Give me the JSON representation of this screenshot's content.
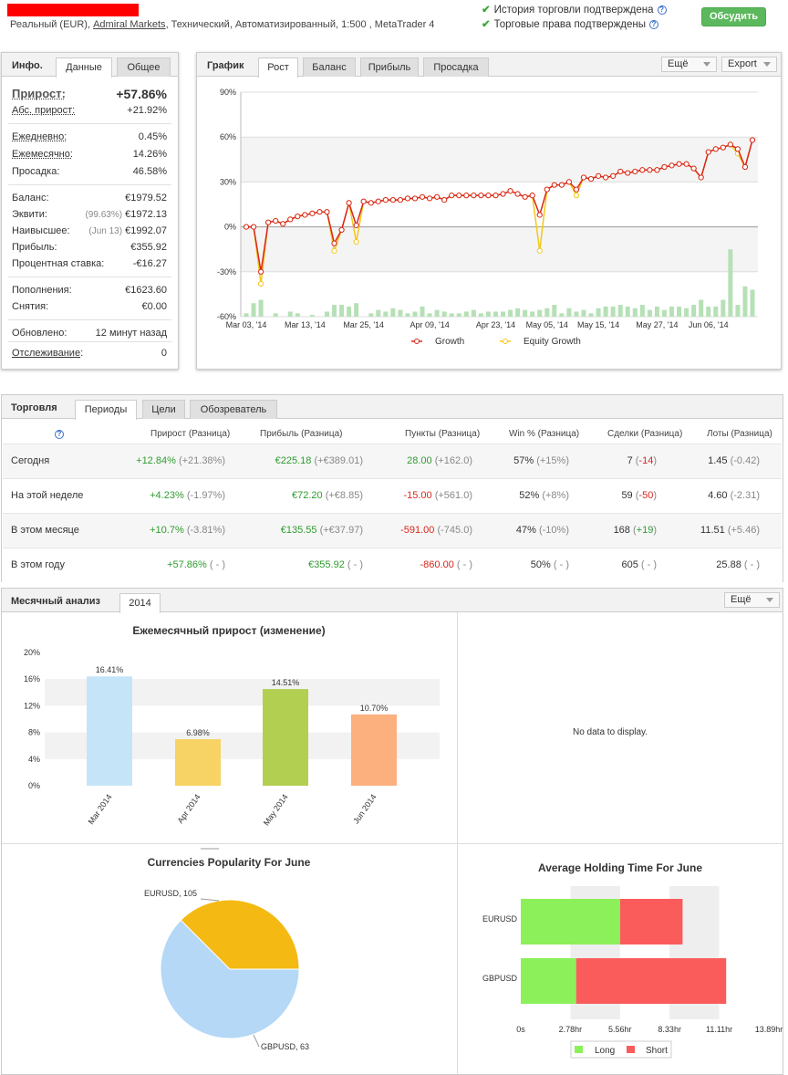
{
  "header": {
    "account_type": "Реальный (EUR),",
    "broker": "Admiral Markets",
    "details": ", Технический, Автоматизированный, 1:500 , MetaTrader 4",
    "verif1": "История торговли подтверждена",
    "verif2": "Торговые права подтверждены",
    "qm": "?",
    "discuss": "Обсудить"
  },
  "info": {
    "title": "Инфо.",
    "tabs": [
      "Данные",
      "Общее"
    ],
    "growth_label": "Прирост:",
    "growth_value": "+57.86%",
    "abs_label": "Абс. прирост:",
    "abs_value": "+21.92%",
    "daily_label": "Ежедневно:",
    "daily_value": "0.45%",
    "monthly_label": "Ежемесячно:",
    "monthly_value": "14.26%",
    "dd_label": "Просадка:",
    "dd_value": "46.58%",
    "balance_label": "Баланс:",
    "balance_value": "€1979.52",
    "equity_label": "Эквити:",
    "equity_pct": "(99.63%)",
    "equity_value": "€1972.13",
    "highest_label": "Наивысшее:",
    "highest_date": "(Jun 13)",
    "highest_value": "€1992.07",
    "profit_label": "Прибыль:",
    "profit_value": "€355.92",
    "interest_label": "Процентная ставка:",
    "interest_value": "-€16.27",
    "deposits_label": "Пополнения:",
    "deposits_value": "€1623.60",
    "withdrawals_label": "Снятия:",
    "withdrawals_value": "€0.00",
    "updated_label": "Обновлено:",
    "updated_value": "12 минут назад",
    "tracking_label": "Отслеживание",
    "tracking_colon": ":",
    "tracking_value": "0"
  },
  "graph": {
    "title": "График",
    "tabs": [
      "Рост",
      "Баланс",
      "Прибыль",
      "Просадка"
    ],
    "more": "Ещё",
    "export": "Export"
  },
  "chart_data": [
    {
      "type": "line",
      "title": "",
      "yticks": [
        "90%",
        "60%",
        "30%",
        "0%",
        "-30%",
        "-60%"
      ],
      "ylim": [
        -60,
        90
      ],
      "xticks": [
        "Mar 03, '14",
        "Mar 13, '14",
        "Mar 25, '14",
        "Apr 09, '14",
        "Apr 23, '14",
        "May 05, '14",
        "May 15, '14",
        "May 27, '14",
        "Jun 06, '14"
      ],
      "series": [
        {
          "name": "Growth",
          "color": "#d9261c",
          "values": [
            0,
            0,
            -30,
            3,
            4,
            2,
            5,
            7,
            8,
            9,
            10,
            10,
            -11,
            -2,
            16,
            1,
            17,
            16,
            17,
            18,
            18,
            18,
            19,
            19,
            20,
            19,
            20,
            18,
            21,
            21,
            21,
            21,
            21,
            21,
            21,
            22,
            24,
            22,
            20,
            21,
            8,
            25,
            28,
            28,
            30,
            25,
            33,
            32,
            34,
            33,
            34,
            37,
            36,
            37,
            38,
            38,
            38,
            40,
            41,
            42,
            42,
            39,
            33,
            50,
            52,
            53,
            55,
            52,
            40,
            58
          ],
          "bar_color": "#b6e0b6"
        },
        {
          "name": "Equity Growth",
          "color": "#f2c81c",
          "values": [
            0,
            0,
            -38,
            3,
            4,
            2,
            5,
            7,
            8,
            9,
            10,
            10,
            -16,
            -2,
            16,
            -10,
            17,
            16,
            17,
            18,
            18,
            18,
            19,
            19,
            20,
            19,
            20,
            18,
            21,
            21,
            21,
            21,
            21,
            21,
            21,
            22,
            24,
            22,
            20,
            21,
            -16,
            25,
            28,
            28,
            30,
            21,
            33,
            32,
            34,
            33,
            34,
            37,
            36,
            37,
            38,
            38,
            38,
            40,
            41,
            42,
            42,
            39,
            33,
            50,
            52,
            53,
            55,
            49,
            40,
            58
          ]
        }
      ],
      "volume_pct": [
        2,
        8,
        10,
        0,
        2,
        0,
        3,
        2,
        0,
        1,
        0,
        3,
        7,
        7,
        6,
        8,
        0,
        2,
        4,
        3,
        5,
        4,
        2,
        3,
        6,
        2,
        4,
        3,
        2,
        2,
        3,
        4,
        2,
        3,
        3,
        3,
        4,
        5,
        4,
        3,
        4,
        5,
        7,
        2,
        5,
        3,
        4,
        2,
        5,
        6,
        6,
        7,
        6,
        5,
        7,
        4,
        6,
        4,
        6,
        6,
        5,
        7,
        10,
        6,
        6,
        10,
        40,
        7,
        18,
        16
      ]
    },
    {
      "type": "bar",
      "title": "Ежемесячный прирост (изменение)",
      "categories": [
        "Mar 2014",
        "Apr 2014",
        "May 2014",
        "Jun 2014"
      ],
      "values": [
        16.41,
        6.98,
        14.51,
        10.7
      ],
      "labels": [
        "16.41%",
        "6.98%",
        "14.51%",
        "10.70%"
      ],
      "colors": [
        "#c6e4f8",
        "#f7d264",
        "#b2cf52",
        "#fbb07e"
      ],
      "yticks": [
        "20%",
        "16%",
        "12%",
        "8%",
        "4%",
        "0%"
      ],
      "ylim": [
        0,
        20
      ]
    },
    {
      "type": "pie",
      "title": "Currencies Popularity For June",
      "slices": [
        {
          "label": "EURUSD, 105",
          "value": 105,
          "color": "#b4d8f6"
        },
        {
          "label": "GBPUSD, 63",
          "value": 63,
          "color": "#f5b914"
        }
      ]
    },
    {
      "type": "bar",
      "title": "Average Holding Time For June",
      "categories": [
        "EURUSD",
        "GBPUSD"
      ],
      "series": [
        {
          "name": "Long",
          "color": "#8cf05a",
          "values": [
            5.56,
            3.1
          ]
        },
        {
          "name": "Short",
          "color": "#fa5c5c",
          "values": [
            3.5,
            8.4
          ]
        }
      ],
      "xticks": [
        "0s",
        "2.78hr",
        "5.56hr",
        "8.33hr",
        "11.11hr",
        "13.89hr"
      ],
      "xlim": [
        0,
        13.89
      ]
    }
  ],
  "legend": {
    "growth": "Growth",
    "equity": "Equity Growth"
  },
  "trading": {
    "title": "Торговля",
    "tabs": [
      "Периоды",
      "Цели",
      "Обозреватель"
    ],
    "headers": [
      "Прирост (Разница)",
      "Прибыль (Разница)",
      "Пункты (Разница)",
      "Win % (Разница)",
      "Сделки (Разница)",
      "Лоты (Разница)"
    ],
    "rows": [
      {
        "label": "Сегодня",
        "g": "+12.84%",
        "gd": "(+21.38%)",
        "p": "€225.18",
        "pd": "(+€389.01)",
        "pt": "28.00",
        "ptd": "(+162.0)",
        "w": "57%",
        "wd": "(+15%)",
        "t": "7",
        "td1": "(",
        "td": "-14",
        "td2": ")",
        "l": "1.45",
        "ld": "(-0.42)"
      },
      {
        "label": "На этой неделе",
        "g": "+4.23%",
        "gd": "(-1.97%)",
        "p": "€72.20",
        "pd": "(+€8.85)",
        "pt": "-15.00",
        "ptd": "(+561.0)",
        "w": "52%",
        "wd": "(+8%)",
        "t": "59",
        "td1": "(",
        "td": "-50",
        "td2": ")",
        "l": "4.60",
        "ld": "(-2.31)"
      },
      {
        "label": "В этом месяце",
        "g": "+10.7%",
        "gd": "(-3.81%)",
        "p": "€135.55",
        "pd": "(+€37.97)",
        "pt": "-591.00",
        "ptd": "(-745.0)",
        "w": "47%",
        "wd": "(-10%)",
        "t": "168",
        "td1": "(",
        "td": "+19",
        "td2": ")",
        "l": "11.51",
        "ld": "(+5.46)"
      },
      {
        "label": "В этом году",
        "g": "+57.86%",
        "gd": "( - )",
        "p": "€355.92",
        "pd": "( - )",
        "pt": "-860.00",
        "ptd": "( - )",
        "w": "50%",
        "wd": "( - )",
        "t": "605",
        "td1": "( - )",
        "td": "",
        "td2": "",
        "l": "25.88",
        "ld": "( - )"
      }
    ]
  },
  "monthly": {
    "title": "Месячный анализ",
    "tab": "2014",
    "more": "Ещё",
    "nodata": "No data to display."
  },
  "hold_legend": {
    "long": "Long",
    "short": "Short"
  }
}
